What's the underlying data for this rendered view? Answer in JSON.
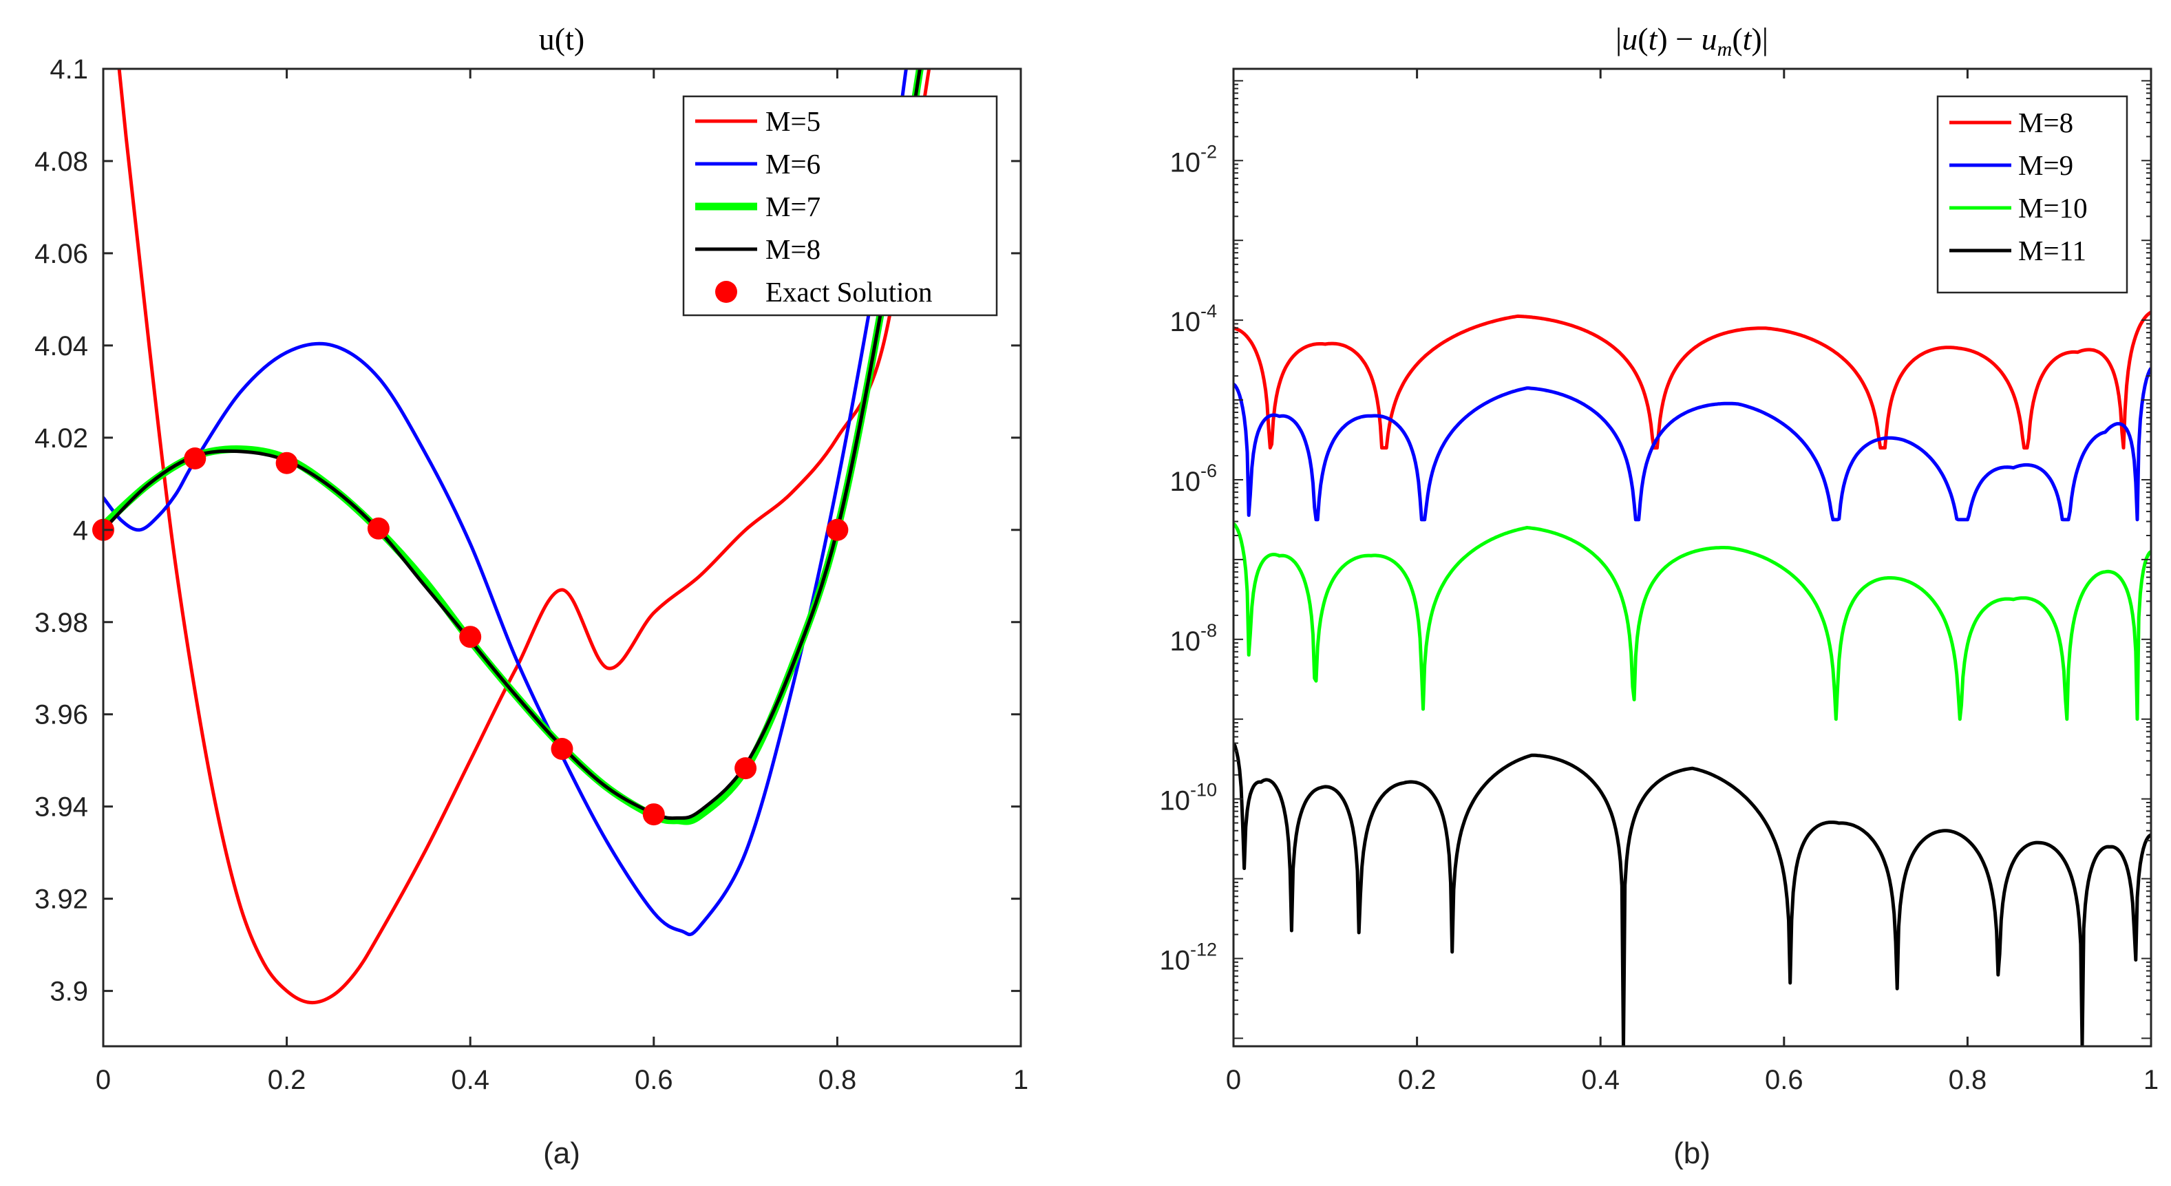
{
  "figure": {
    "panel_labels": [
      "(a)",
      "(b)"
    ]
  },
  "chart_data": [
    {
      "type": "line",
      "title": "u(t)",
      "xlabel": "(a)",
      "ylabel": "",
      "xlim": [
        0,
        1
      ],
      "ylim": [
        3.888,
        4.1
      ],
      "xticks": [
        0,
        0.2,
        0.4,
        0.6,
        0.8,
        1
      ],
      "xtick_labels": [
        "0",
        "0.2",
        "0.4",
        "0.6",
        "0.8",
        "1"
      ],
      "yticks": [
        3.9,
        3.92,
        3.94,
        3.96,
        3.98,
        4,
        4.02,
        4.04,
        4.06,
        4.08,
        4.1
      ],
      "ytick_labels": [
        "3.9",
        "3.92",
        "3.94",
        "3.96",
        "3.98",
        "4",
        "4.02",
        "4.04",
        "4.06",
        "4.08",
        "4.1"
      ],
      "legend_position": "top-right",
      "series": [
        {
          "name": "M=5",
          "color": "#ff0000",
          "x": [
            0,
            0.025,
            0.05,
            0.075,
            0.1,
            0.125,
            0.15,
            0.175,
            0.2,
            0.225,
            0.25,
            0.275,
            0.3,
            0.35,
            0.4,
            0.45,
            0.5,
            0.55,
            0.6,
            0.65,
            0.7,
            0.75,
            0.8,
            0.85,
            0.9
          ],
          "y": [
            4.135,
            4.085,
            4.04,
            3.998,
            3.965,
            3.938,
            3.918,
            3.906,
            3.9,
            3.8975,
            3.899,
            3.904,
            3.912,
            3.93,
            3.95,
            3.97,
            3.987,
            3.97,
            3.982,
            3.99,
            4.0,
            4.008,
            4.02,
            4.04,
            4.1
          ]
        },
        {
          "name": "M=6",
          "color": "#0000ff",
          "x": [
            0,
            0.02,
            0.04,
            0.06,
            0.08,
            0.1,
            0.15,
            0.2,
            0.25,
            0.3,
            0.35,
            0.4,
            0.45,
            0.5,
            0.55,
            0.6,
            0.63,
            0.65,
            0.7,
            0.75,
            0.8,
            0.85,
            0.875
          ],
          "y": [
            4.007,
            4.002,
            4.0,
            4.003,
            4.008,
            4.015,
            4.03,
            4.0385,
            4.04,
            4.033,
            4.017,
            3.997,
            3.972,
            3.951,
            3.932,
            3.917,
            3.913,
            3.914,
            3.93,
            3.965,
            4.01,
            4.065,
            4.1
          ]
        },
        {
          "name": "M=7",
          "color": "#00ff00",
          "line_width": "thick",
          "x": [
            0,
            0.05,
            0.1,
            0.15,
            0.2,
            0.25,
            0.3,
            0.35,
            0.4,
            0.45,
            0.5,
            0.55,
            0.6,
            0.625,
            0.65,
            0.7,
            0.75,
            0.8,
            0.85,
            0.89
          ],
          "y": [
            4.001,
            4.01,
            4.016,
            4.0175,
            4.0155,
            4.009,
            4.0,
            3.989,
            3.976,
            3.964,
            3.953,
            3.944,
            3.938,
            3.937,
            3.938,
            3.948,
            3.97,
            4.0,
            4.05,
            4.1
          ]
        },
        {
          "name": "M=8",
          "color": "#000000",
          "x": [
            0,
            0.05,
            0.1,
            0.15,
            0.2,
            0.25,
            0.3,
            0.35,
            0.4,
            0.45,
            0.5,
            0.55,
            0.6,
            0.625,
            0.65,
            0.7,
            0.75,
            0.8,
            0.85,
            0.89
          ],
          "y": [
            4.0,
            4.01,
            4.016,
            4.017,
            4.015,
            4.009,
            4.0,
            3.988,
            3.976,
            3.964,
            3.953,
            3.944,
            3.9385,
            3.9375,
            3.939,
            3.949,
            3.97,
            4.0,
            4.05,
            4.1
          ]
        }
      ],
      "markers": {
        "name": "Exact Solution",
        "color": "#ff0000",
        "x": [
          0,
          0.1,
          0.2,
          0.3,
          0.4,
          0.5,
          0.6,
          0.7,
          0.8
        ],
        "y": [
          4.0,
          4.0155,
          4.0145,
          4.0003,
          3.9768,
          3.9525,
          3.9383,
          3.9483,
          4.0
        ]
      }
    },
    {
      "type": "line",
      "title": "|u(t) − u_m(t)|",
      "title_parts": {
        "left": "|",
        "u": "u",
        "t1": "(",
        "t": "t",
        "mid": ") − ",
        "sub": "m",
        "end": ")|"
      },
      "xlabel": "(b)",
      "ylabel": "",
      "yscale": "log",
      "xlim": [
        0,
        1
      ],
      "ylim_log10": [
        -13.1,
        -0.85
      ],
      "xticks": [
        0,
        0.2,
        0.4,
        0.6,
        0.8,
        1
      ],
      "xtick_labels": [
        "0",
        "0.2",
        "0.4",
        "0.6",
        "0.8",
        "1"
      ],
      "ytick_exponents": [
        -12,
        -10,
        -8,
        -6,
        -4,
        -2
      ],
      "ytick_base": "10",
      "legend_position": "top-right",
      "series": [
        {
          "name": "M=8",
          "color": "#ff0000",
          "log_floor": -5.6,
          "zeros": [
            0.04,
            0.163,
            0.46,
            0.708,
            0.864,
            0.97
          ],
          "peaks": [
            [
              0,
              -4.1
            ],
            [
              0.1,
              -4.3
            ],
            [
              0.31,
              -3.95
            ],
            [
              0.58,
              -4.1
            ],
            [
              0.79,
              -4.35
            ],
            [
              0.92,
              -4.4
            ],
            [
              1,
              -3.9
            ]
          ]
        },
        {
          "name": "M=9",
          "color": "#0000ff",
          "log_floor": -6.5,
          "zeros": [
            0.017,
            0.09,
            0.206,
            0.44,
            0.657,
            0.795,
            0.908,
            0.985
          ],
          "peaks": [
            [
              0,
              -4.8
            ],
            [
              0.05,
              -5.2
            ],
            [
              0.15,
              -5.2
            ],
            [
              0.32,
              -4.85
            ],
            [
              0.55,
              -5.05
            ],
            [
              0.73,
              -5.5
            ],
            [
              0.85,
              -5.85
            ],
            [
              0.95,
              -5.4
            ],
            [
              1,
              -4.6
            ]
          ]
        },
        {
          "name": "M=10",
          "color": "#00ff00",
          "log_floor": -9.0,
          "zeros": [
            0.017,
            0.089,
            0.206,
            0.436,
            0.657,
            0.792,
            0.908,
            0.985
          ],
          "peaks": [
            [
              0,
              -6.55
            ],
            [
              0.05,
              -6.95
            ],
            [
              0.15,
              -6.95
            ],
            [
              0.32,
              -6.6
            ],
            [
              0.54,
              -6.85
            ],
            [
              0.73,
              -7.25
            ],
            [
              0.85,
              -7.5
            ],
            [
              0.95,
              -7.15
            ],
            [
              1,
              -6.9
            ]
          ]
        },
        {
          "name": "M=11",
          "color": "#000000",
          "log_floor": -13.1,
          "zeros": [
            0.011,
            0.063,
            0.137,
            0.238,
            0.425,
            0.607,
            0.723,
            0.834,
            0.925,
            0.983
          ],
          "peaks": [
            [
              0,
              -9.3
            ],
            [
              0.03,
              -9.75
            ],
            [
              0.095,
              -9.85
            ],
            [
              0.185,
              -9.8
            ],
            [
              0.325,
              -9.45
            ],
            [
              0.5,
              -9.6
            ],
            [
              0.66,
              -10.3
            ],
            [
              0.78,
              -10.4
            ],
            [
              0.88,
              -10.55
            ],
            [
              0.955,
              -10.6
            ],
            [
              1,
              -10.45
            ]
          ]
        }
      ]
    }
  ]
}
